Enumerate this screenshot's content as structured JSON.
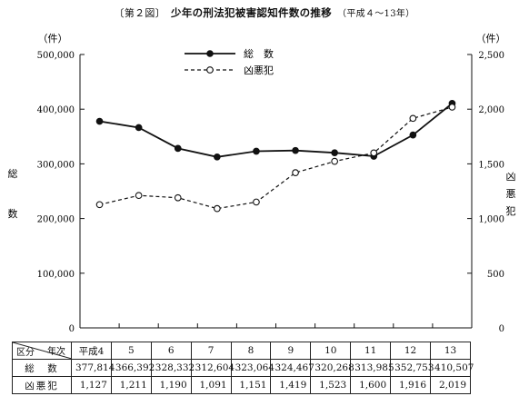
{
  "title": {
    "figure_no": "〔第２図〕",
    "main": "少年の刑法犯被害認知件数の推移",
    "period": "（平成４～13年）"
  },
  "axes": {
    "left_unit": "（件）",
    "right_unit": "（件）",
    "left_label": "総　数",
    "right_label": "凶悪犯",
    "left_ticks": [
      "500,000",
      "400,000",
      "300,000",
      "200,000",
      "100,000",
      "0"
    ],
    "right_ticks": [
      "2,500",
      "2,000",
      "1,500",
      "1,000",
      "500",
      "0"
    ]
  },
  "legend": {
    "total": "総　数",
    "violent": "凶悪犯"
  },
  "table": {
    "header_year": "年次",
    "header_class": "区分",
    "years": [
      "平成4",
      "5",
      "6",
      "7",
      "8",
      "9",
      "10",
      "11",
      "12",
      "13"
    ],
    "rows": [
      {
        "label": "総　数",
        "values": [
          "377,814",
          "366,392",
          "328,332",
          "312,604",
          "323,064",
          "324,467",
          "320,268",
          "313,985",
          "352,753",
          "410,507"
        ]
      },
      {
        "label": "凶悪犯",
        "values": [
          "1,127",
          "1,211",
          "1,190",
          "1,091",
          "1,151",
          "1,419",
          "1,523",
          "1,600",
          "1,916",
          "2,019"
        ]
      }
    ]
  },
  "chart_data": {
    "type": "line",
    "categories": [
      "平成4",
      "5",
      "6",
      "7",
      "8",
      "9",
      "10",
      "11",
      "12",
      "13"
    ],
    "ylim_left": [
      0,
      500000
    ],
    "ylim_right": [
      0,
      2500
    ],
    "grid": false,
    "legend_position": "top-center",
    "series": [
      {
        "name": "総　数",
        "axis": "left",
        "style": "solid-filled-marker",
        "values": [
          377814,
          366392,
          328332,
          312604,
          323064,
          324467,
          320268,
          313985,
          352753,
          410507
        ]
      },
      {
        "name": "凶悪犯",
        "axis": "right",
        "style": "dashed-open-marker",
        "values": [
          1127,
          1211,
          1190,
          1091,
          1151,
          1419,
          1523,
          1600,
          1916,
          2019
        ]
      }
    ]
  }
}
